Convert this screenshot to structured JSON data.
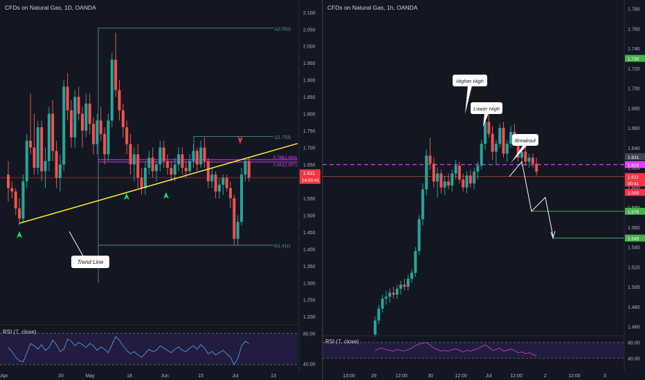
{
  "left_panel": {
    "title": "CFDs on Natural Gas, 1D, OANDA",
    "rsi_label": "RSI (7, close)",
    "y_ticks": [
      "2.100",
      "2.050",
      "2.000",
      "1.950",
      "1.900",
      "1.850",
      "1.800",
      "1.750",
      "1.700",
      "1.650",
      "1.600",
      "1.550",
      "1.500",
      "1.450",
      "1.400",
      "1.350",
      "1.300",
      "1.250",
      "1.200"
    ],
    "rsi_ticks": [
      "80.00",
      "40.00"
    ],
    "x_ticks": [
      "Apr",
      "20",
      "May",
      "18",
      "Jun",
      "15",
      "Jul",
      "13"
    ],
    "price_tags": [
      {
        "text": "1.611",
        "color": "#f23645"
      },
      {
        "text": "14:00:41",
        "color": "#f23645"
      }
    ],
    "fib_labels": [
      "1(2.053)",
      "1(1.733)",
      "0.786(1.664)",
      "0.382(1.657)",
      "0(1.411)",
      "0(1.411)"
    ],
    "callout": "Trend Line",
    "colors": {
      "up": "#26a69a",
      "down": "#ef5350",
      "trendline": "#ffeb3b",
      "magenta": "#e040fb",
      "fib": "#5e9ca0",
      "arrow_up": "#00e676",
      "arrow_down": "#f23645",
      "rsi_line": "#4a90d9",
      "rsi_bg": "#2a1f4a"
    }
  },
  "right_panel": {
    "title": "CFDs on Natural Gas, 1h, OANDA",
    "rsi_label": "RSI (7, close)",
    "y_ticks": [
      "1.780",
      "1.760",
      "1.740",
      "1.720",
      "1.700",
      "1.680",
      "1.660",
      "1.640",
      "1.620",
      "1.600",
      "1.580",
      "1.560",
      "1.540",
      "1.520",
      "1.500",
      "1.480",
      "1.460"
    ],
    "rsi_ticks": [
      "80.00",
      "40.00"
    ],
    "x_ticks": [
      "13:00",
      "29",
      "12:00",
      "30",
      "12:00",
      "Jul",
      "12:00",
      "2",
      "12:00",
      "3"
    ],
    "price_tags": [
      {
        "text": "1.730",
        "color": "#4caf50"
      },
      {
        "text": "1.631",
        "color": "#434651"
      },
      {
        "text": "1.623",
        "color": "#e040fb"
      },
      {
        "text": "1.611",
        "color": "#f23645"
      },
      {
        "text": "00:41",
        "color": "#f23645"
      },
      {
        "text": "1.595",
        "color": "#f23645"
      },
      {
        "text": "1.576",
        "color": "#4caf50"
      },
      {
        "text": "1.549",
        "color": "#4caf50"
      }
    ],
    "callouts": {
      "higher_high": "Higher High",
      "lower_high": "Lower High",
      "breakout": "Breakout"
    },
    "colors": {
      "up": "#26a69a",
      "down": "#ef5350",
      "magenta": "#e040fb",
      "target": "#4caf50",
      "rsi_line": "#b03fb0",
      "rsi_bg": "#2a1f4a"
    }
  },
  "chart_data": [
    {
      "type": "candlestick",
      "title": "CFDs on Natural Gas, 1D, OANDA",
      "xlabel": "",
      "ylabel": "",
      "ylim": [
        1.18,
        2.12
      ],
      "x_ticks": [
        "Apr",
        "20",
        "May",
        "18",
        "Jun",
        "15",
        "Jul",
        "13"
      ],
      "candles": [
        [
          1.62,
          1.66,
          1.54,
          1.58
        ],
        [
          1.58,
          1.6,
          1.55,
          1.57
        ],
        [
          1.57,
          1.58,
          1.5,
          1.52
        ],
        [
          1.52,
          1.55,
          1.47,
          1.49
        ],
        [
          1.49,
          1.62,
          1.48,
          1.6
        ],
        [
          1.6,
          1.74,
          1.58,
          1.72
        ],
        [
          1.72,
          1.86,
          1.68,
          1.7
        ],
        [
          1.7,
          1.8,
          1.62,
          1.64
        ],
        [
          1.64,
          1.78,
          1.62,
          1.76
        ],
        [
          1.76,
          1.78,
          1.6,
          1.63
        ],
        [
          1.63,
          1.7,
          1.58,
          1.66
        ],
        [
          1.66,
          1.82,
          1.63,
          1.8
        ],
        [
          1.8,
          1.84,
          1.66,
          1.69
        ],
        [
          1.69,
          1.72,
          1.58,
          1.61
        ],
        [
          1.61,
          1.68,
          1.57,
          1.65
        ],
        [
          1.65,
          1.9,
          1.63,
          1.88
        ],
        [
          1.88,
          1.92,
          1.78,
          1.81
        ],
        [
          1.81,
          1.84,
          1.7,
          1.73
        ],
        [
          1.73,
          1.87,
          1.7,
          1.85
        ],
        [
          1.85,
          1.88,
          1.78,
          1.8
        ],
        [
          1.8,
          1.82,
          1.7,
          1.75
        ],
        [
          1.75,
          1.86,
          1.73,
          1.83
        ],
        [
          1.83,
          1.86,
          1.74,
          1.77
        ],
        [
          1.77,
          1.79,
          1.68,
          1.71
        ],
        [
          1.71,
          1.8,
          1.68,
          1.78
        ],
        [
          1.78,
          1.82,
          1.72,
          1.74
        ],
        [
          1.74,
          1.76,
          1.65,
          1.68
        ],
        [
          1.68,
          1.8,
          1.66,
          1.78
        ],
        [
          1.78,
          1.98,
          1.76,
          1.96
        ],
        [
          1.96,
          2.04,
          1.85,
          1.87
        ],
        [
          1.87,
          1.9,
          1.78,
          1.81
        ],
        [
          1.81,
          1.83,
          1.73,
          1.76
        ],
        [
          1.76,
          1.78,
          1.68,
          1.71
        ],
        [
          1.71,
          1.74,
          1.62,
          1.65
        ],
        [
          1.65,
          1.7,
          1.6,
          1.68
        ],
        [
          1.68,
          1.71,
          1.58,
          1.61
        ],
        [
          1.61,
          1.64,
          1.56,
          1.58
        ],
        [
          1.58,
          1.66,
          1.56,
          1.64
        ],
        [
          1.64,
          1.69,
          1.62,
          1.67
        ],
        [
          1.67,
          1.7,
          1.61,
          1.63
        ],
        [
          1.63,
          1.66,
          1.6,
          1.65
        ],
        [
          1.65,
          1.72,
          1.63,
          1.7
        ],
        [
          1.7,
          1.72,
          1.64,
          1.66
        ],
        [
          1.66,
          1.68,
          1.62,
          1.64
        ],
        [
          1.64,
          1.66,
          1.6,
          1.62
        ],
        [
          1.62,
          1.67,
          1.6,
          1.65
        ],
        [
          1.65,
          1.7,
          1.63,
          1.68
        ],
        [
          1.68,
          1.7,
          1.62,
          1.64
        ],
        [
          1.64,
          1.66,
          1.61,
          1.63
        ],
        [
          1.63,
          1.68,
          1.62,
          1.66
        ],
        [
          1.66,
          1.71,
          1.64,
          1.69
        ],
        [
          1.69,
          1.7,
          1.63,
          1.65
        ],
        [
          1.65,
          1.72,
          1.64,
          1.7
        ],
        [
          1.7,
          1.73,
          1.64,
          1.66
        ],
        [
          1.66,
          1.67,
          1.58,
          1.6
        ],
        [
          1.6,
          1.64,
          1.58,
          1.62
        ],
        [
          1.62,
          1.63,
          1.55,
          1.57
        ],
        [
          1.57,
          1.61,
          1.55,
          1.59
        ],
        [
          1.59,
          1.62,
          1.56,
          1.61
        ],
        [
          1.61,
          1.62,
          1.57,
          1.58
        ],
        [
          1.58,
          1.6,
          1.52,
          1.55
        ],
        [
          1.55,
          1.56,
          1.41,
          1.43
        ],
        [
          1.43,
          1.5,
          1.41,
          1.48
        ],
        [
          1.48,
          1.64,
          1.47,
          1.62
        ],
        [
          1.62,
          1.67,
          1.6,
          1.66
        ],
        [
          1.66,
          1.67,
          1.6,
          1.61
        ]
      ],
      "trend_line": {
        "from": [
          1.476,
          "Apr"
        ],
        "to": [
          1.71,
          "Jul+"
        ]
      },
      "horizontal_lines": [
        1.664,
        1.657,
        1.611
      ],
      "fib_levels": {
        "1": [
          2.053,
          1.733
        ],
        "0.786": 1.664,
        "0.382": 1.657,
        "0": 1.411
      },
      "rsi": {
        "name": "RSI (7, close)",
        "ylim": [
          20,
          90
        ],
        "levels": [
          80,
          40
        ],
        "values": [
          55,
          48,
          38,
          32,
          30,
          45,
          62,
          58,
          52,
          60,
          50,
          55,
          68,
          60,
          48,
          52,
          70,
          66,
          58,
          64,
          60,
          55,
          62,
          58,
          50,
          56,
          52,
          46,
          60,
          74,
          68,
          58,
          50,
          44,
          48,
          42,
          38,
          45,
          52,
          48,
          50,
          58,
          54,
          50,
          46,
          52,
          56,
          50,
          48,
          54,
          58,
          52,
          60,
          54,
          44,
          48,
          42,
          46,
          50,
          44,
          38,
          25,
          36,
          58,
          66,
          62
        ]
      }
    },
    {
      "type": "candlestick",
      "title": "CFDs on Natural Gas, 1h, OANDA",
      "xlabel": "",
      "ylabel": "",
      "ylim": [
        1.452,
        1.786
      ],
      "x_ticks": [
        "13:00",
        "29",
        "12:00",
        "30",
        "12:00",
        "Jul",
        "12:00",
        "2",
        "12:00",
        "3"
      ],
      "candles": [
        [
          1.452,
          1.47,
          1.45,
          1.466
        ],
        [
          1.466,
          1.482,
          1.462,
          1.478
        ],
        [
          1.478,
          1.492,
          1.474,
          1.488
        ],
        [
          1.488,
          1.496,
          1.482,
          1.49
        ],
        [
          1.49,
          1.498,
          1.484,
          1.494
        ],
        [
          1.494,
          1.5,
          1.488,
          1.492
        ],
        [
          1.492,
          1.502,
          1.488,
          1.498
        ],
        [
          1.498,
          1.506,
          1.492,
          1.502
        ],
        [
          1.502,
          1.508,
          1.496,
          1.5
        ],
        [
          1.5,
          1.512,
          1.496,
          1.508
        ],
        [
          1.508,
          1.518,
          1.504,
          1.514
        ],
        [
          1.514,
          1.54,
          1.51,
          1.536
        ],
        [
          1.536,
          1.572,
          1.532,
          1.568
        ],
        [
          1.568,
          1.604,
          1.562,
          1.598
        ],
        [
          1.598,
          1.638,
          1.592,
          1.632
        ],
        [
          1.632,
          1.65,
          1.618,
          1.624
        ],
        [
          1.624,
          1.63,
          1.6,
          1.606
        ],
        [
          1.606,
          1.62,
          1.59,
          1.614
        ],
        [
          1.614,
          1.618,
          1.594,
          1.6
        ],
        [
          1.6,
          1.612,
          1.592,
          1.606
        ],
        [
          1.606,
          1.614,
          1.598,
          1.602
        ],
        [
          1.602,
          1.618,
          1.596,
          1.614
        ],
        [
          1.614,
          1.628,
          1.608,
          1.622
        ],
        [
          1.622,
          1.626,
          1.604,
          1.608
        ],
        [
          1.608,
          1.614,
          1.596,
          1.6
        ],
        [
          1.6,
          1.616,
          1.594,
          1.612
        ],
        [
          1.612,
          1.618,
          1.6,
          1.604
        ],
        [
          1.604,
          1.62,
          1.598,
          1.616
        ],
        [
          1.616,
          1.626,
          1.608,
          1.622
        ],
        [
          1.622,
          1.648,
          1.618,
          1.644
        ],
        [
          1.644,
          1.672,
          1.638,
          1.666
        ],
        [
          1.666,
          1.68,
          1.65,
          1.654
        ],
        [
          1.654,
          1.662,
          1.628,
          1.636
        ],
        [
          1.636,
          1.648,
          1.624,
          1.644
        ],
        [
          1.644,
          1.664,
          1.64,
          1.66
        ],
        [
          1.66,
          1.666,
          1.63,
          1.634
        ],
        [
          1.634,
          1.648,
          1.626,
          1.644
        ],
        [
          1.644,
          1.662,
          1.64,
          1.656
        ],
        [
          1.656,
          1.664,
          1.644,
          1.648
        ],
        [
          1.648,
          1.652,
          1.626,
          1.63
        ],
        [
          1.63,
          1.64,
          1.622,
          1.636
        ],
        [
          1.636,
          1.64,
          1.622,
          1.626
        ],
        [
          1.626,
          1.634,
          1.62,
          1.63
        ],
        [
          1.63,
          1.634,
          1.62,
          1.624
        ],
        [
          1.624,
          1.63,
          1.612,
          1.616
        ]
      ],
      "horizontal_lines": [
        1.623,
        1.611
      ],
      "projection": [
        [
          1.623,
          "now"
        ],
        [
          1.611,
          "+1"
        ],
        [
          1.623,
          "+3"
        ],
        [
          1.576,
          "+5"
        ],
        [
          1.59,
          "+8"
        ],
        [
          1.549,
          "+10"
        ]
      ],
      "targets": [
        1.576,
        1.549
      ],
      "rsi": {
        "name": "RSI (7, close)",
        "ylim": [
          20,
          90
        ],
        "levels": [
          80,
          40
        ],
        "values": [
          60,
          64,
          66,
          62,
          60,
          58,
          62,
          60,
          58,
          62,
          66,
          72,
          76,
          78,
          80,
          74,
          66,
          62,
          58,
          60,
          58,
          62,
          64,
          60,
          56,
          60,
          58,
          62,
          64,
          70,
          74,
          68,
          60,
          62,
          66,
          58,
          60,
          64,
          60,
          54,
          56,
          52,
          54,
          50,
          46
        ]
      }
    }
  ]
}
